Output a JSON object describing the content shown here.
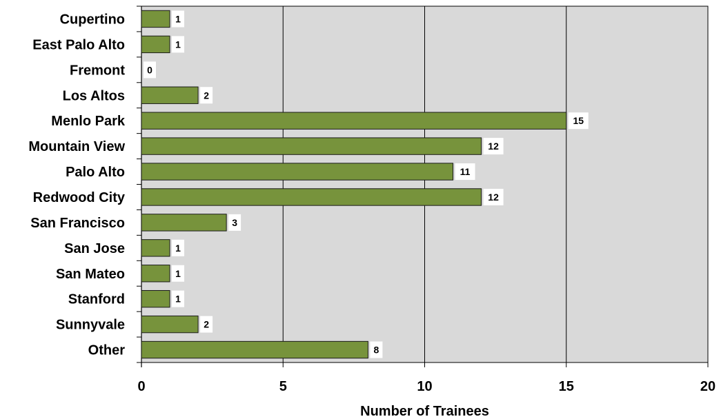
{
  "chart_data": {
    "type": "bar",
    "orientation": "horizontal",
    "categories": [
      "Cupertino",
      "East Palo Alto",
      "Fremont",
      "Los Altos",
      "Menlo Park",
      "Mountain View",
      "Palo Alto",
      "Redwood City",
      "San Francisco",
      "San Jose",
      "San Mateo",
      "Stanford",
      "Sunnyvale",
      "Other"
    ],
    "values": [
      1,
      1,
      0,
      2,
      15,
      12,
      11,
      12,
      3,
      1,
      1,
      1,
      2,
      8
    ],
    "xlabel": "Number of Trainees",
    "ylabel": "",
    "xlim": [
      0,
      20
    ],
    "xticks": [
      0,
      5,
      10,
      15,
      20
    ],
    "grid": "vertical",
    "colors": {
      "bar": "#77933c",
      "bar_border": "#1a1a1a",
      "plot_background": "#d9d9d9",
      "gridline": "#000000",
      "label_box": "#ffffff"
    }
  }
}
